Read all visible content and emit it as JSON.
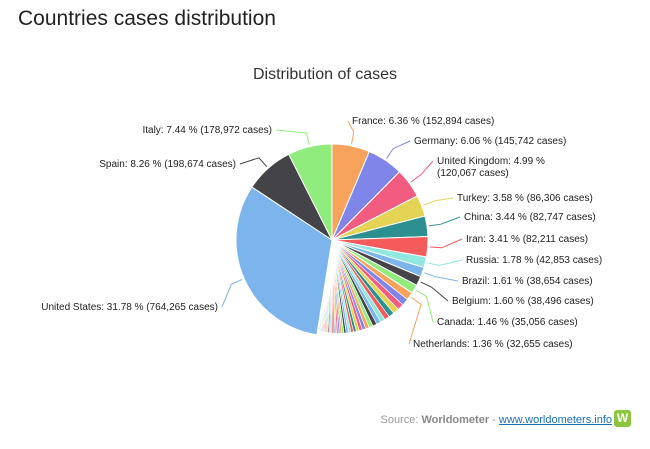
{
  "page": {
    "title": "Countries cases distribution"
  },
  "footer": {
    "source_prefix": "Source:",
    "source_name": "Worldometer",
    "separator": "-",
    "link_text": "www.worldometers.info",
    "logo_letter": "W"
  },
  "chart_data": {
    "type": "pie",
    "title": "Distribution of cases",
    "series": [
      {
        "name": "United States",
        "percent": 31.78,
        "percent_label": "31.78 %",
        "cases": "764,265",
        "color": "#7cb5ec"
      },
      {
        "name": "Spain",
        "percent": 8.26,
        "percent_label": "8.26 %",
        "cases": "198,674",
        "color": "#434348"
      },
      {
        "name": "Italy",
        "percent": 7.44,
        "percent_label": "7.44 %",
        "cases": "178,972",
        "color": "#90ed7d"
      },
      {
        "name": "France",
        "percent": 6.36,
        "percent_label": "6.36 %",
        "cases": "152,894",
        "color": "#f7a35c"
      },
      {
        "name": "Germany",
        "percent": 6.06,
        "percent_label": "6.06 %",
        "cases": "145,742",
        "color": "#8085e9"
      },
      {
        "name": "United Kingdom",
        "percent": 4.99,
        "percent_label": "4.99 %",
        "cases": "120,067",
        "color": "#f15c80"
      },
      {
        "name": "Turkey",
        "percent": 3.58,
        "percent_label": "3.58 %",
        "cases": "86,306",
        "color": "#e4d354"
      },
      {
        "name": "China",
        "percent": 3.44,
        "percent_label": "3.44 %",
        "cases": "82,747",
        "color": "#2b908f"
      },
      {
        "name": "Iran",
        "percent": 3.41,
        "percent_label": "3.41 %",
        "cases": "82,211",
        "color": "#f45b5b"
      },
      {
        "name": "Russia",
        "percent": 1.78,
        "percent_label": "1.78 %",
        "cases": "42,853",
        "color": "#91e8e1"
      },
      {
        "name": "Brazil",
        "percent": 1.61,
        "percent_label": "1.61 %",
        "cases": "38,654",
        "color": "#7cb5ec"
      },
      {
        "name": "Belgium",
        "percent": 1.6,
        "percent_label": "1.60 %",
        "cases": "38,496",
        "color": "#434348"
      },
      {
        "name": "Canada",
        "percent": 1.46,
        "percent_label": "1.46 %",
        "cases": "35,056",
        "color": "#90ed7d"
      },
      {
        "name": "Netherlands",
        "percent": 1.36,
        "percent_label": "1.36 %",
        "cases": "32,655",
        "color": "#f7a35c"
      }
    ],
    "other_slice_colors": [
      "#8085e9",
      "#f15c80",
      "#e4d354",
      "#2b908f",
      "#f45b5b",
      "#91e8e1",
      "#7cb5ec",
      "#434348",
      "#90ed7d",
      "#f7a35c"
    ]
  }
}
